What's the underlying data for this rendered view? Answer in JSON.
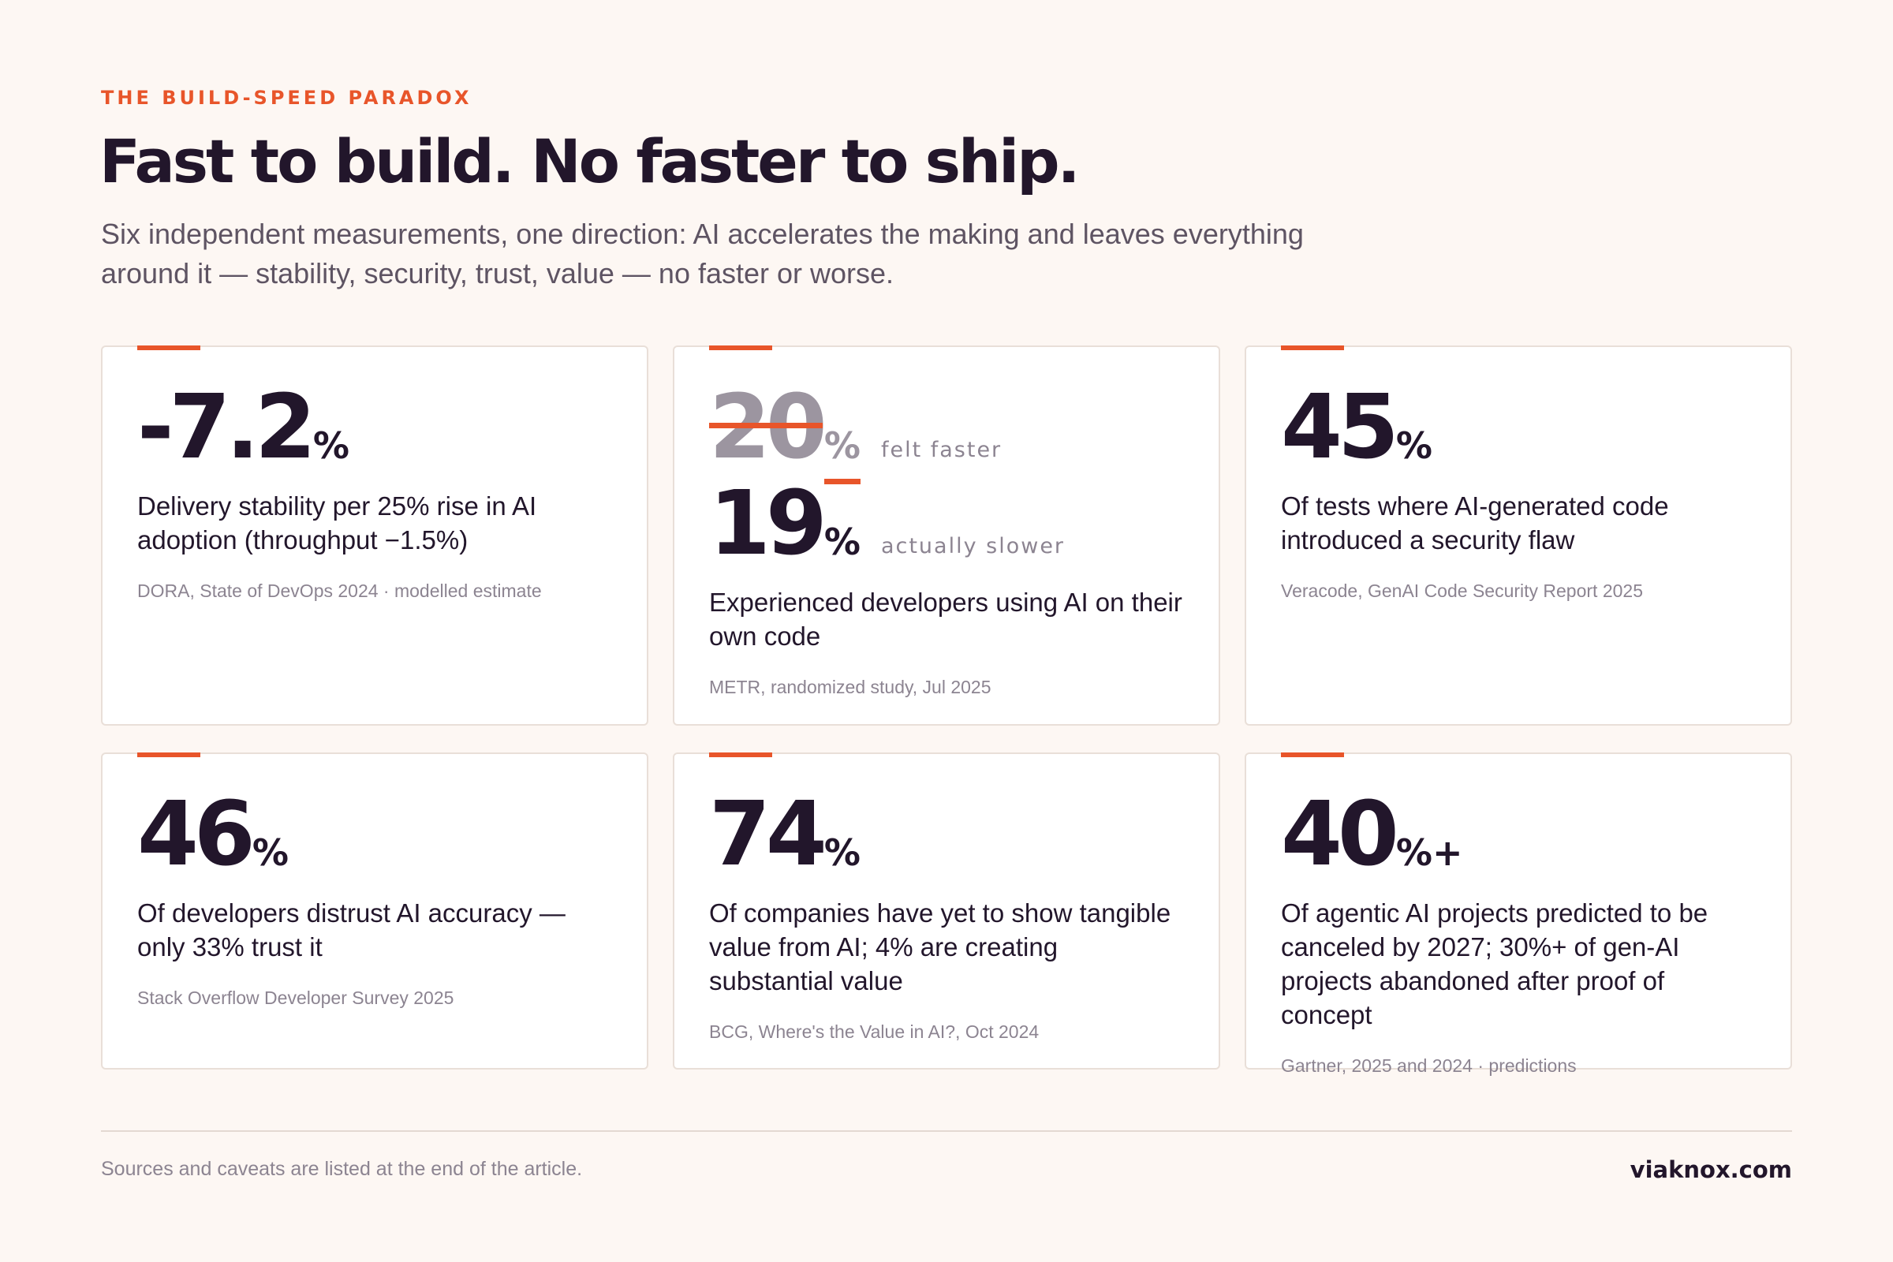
{
  "header": {
    "eyebrow": "THE BUILD-SPEED PARADOX",
    "title": "Fast to build. No faster to ship.",
    "subtitle": "Six independent measurements, one direction: AI accelerates the making and leaves everything around it — stability, security, trust, value — no faster or worse."
  },
  "cards": [
    {
      "value": "-7.2",
      "unit": "%",
      "description": "Delivery stability per 25% rise in AI adoption (throughput −1.5%)",
      "source": "DORA, State of DevOps 2024 · modelled estimate"
    },
    {
      "felt_value": "20",
      "felt_unit": "%",
      "felt_label": "felt faster",
      "actual_value": "19",
      "actual_unit": "%",
      "actual_label": "actually slower",
      "description": "Experienced developers using AI on their own code",
      "source": "METR, randomized study, Jul 2025"
    },
    {
      "value": "45",
      "unit": "%",
      "description": "Of tests where AI-generated code introduced a security flaw",
      "source": "Veracode, GenAI Code Security Report 2025"
    },
    {
      "value": "46",
      "unit": "%",
      "description": "Of developers distrust AI accuracy — only 33% trust it",
      "source": "Stack Overflow Developer Survey 2025"
    },
    {
      "value": "74",
      "unit": "%",
      "description": "Of companies have yet to show tangible value from AI; 4% are creating substantial value",
      "source": "BCG, Where's the Value in AI?, Oct 2024"
    },
    {
      "value": "40",
      "unit": "%+",
      "description": "Of agentic AI projects predicted to be canceled by 2027; 30%+ of gen-AI projects abandoned after proof of concept",
      "source": "Gartner, 2025 and 2024 · predictions"
    }
  ],
  "footer": {
    "note": "Sources and caveats are listed at the end of the article.",
    "brand": "viaknox.com"
  },
  "colors": {
    "accent": "#e8552a",
    "ink": "#22162b",
    "muted": "#8c8491",
    "background": "#fdf7f3"
  }
}
